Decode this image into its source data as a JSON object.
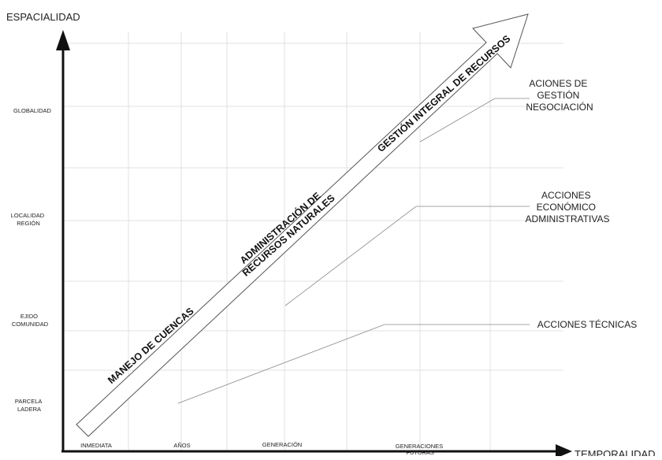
{
  "diagram": {
    "y_axis": {
      "title": "ESPACIALIDAD",
      "levels": [
        {
          "lines": [
            "GLOBALIDAD"
          ]
        },
        {
          "lines": [
            "LOCALIDAD",
            "REGIÓN"
          ]
        },
        {
          "lines": [
            "EJIDO",
            "COMUNIDAD"
          ]
        },
        {
          "lines": [
            "PARCELA",
            "LADERA"
          ]
        }
      ]
    },
    "x_axis": {
      "title": "TEMPORALIDAD",
      "levels": [
        {
          "lines": [
            "INMEDIATA"
          ]
        },
        {
          "lines": [
            "AÑOS"
          ]
        },
        {
          "lines": [
            "GENERACIÓN"
          ]
        },
        {
          "lines": [
            "GENERACIONES",
            "FUTURAS"
          ]
        }
      ]
    },
    "arrow_bands": [
      {
        "lines": [
          "MANEJO DE CUENCAS"
        ]
      },
      {
        "lines": [
          "ADMINISTRACIÓN DE",
          "RECURSOS NATURALES"
        ]
      },
      {
        "lines": [
          "GESTIÓN INTEGRAL DE RECURSOS"
        ]
      }
    ],
    "actions": [
      {
        "lines": [
          "ACIONES DE",
          "GESTIÓN",
          "NEGOCIACIÓN"
        ]
      },
      {
        "lines": [
          "ACCIONES",
          "ECONÓMICO",
          "ADMINISTRATIVAS"
        ]
      },
      {
        "lines": [
          "ACCIONES TÉCNICAS"
        ]
      }
    ],
    "colors": {
      "axis": "#111111",
      "grid": "#d9d9d9",
      "arrow_outline": "#555555",
      "leader_line": "#888888"
    }
  }
}
